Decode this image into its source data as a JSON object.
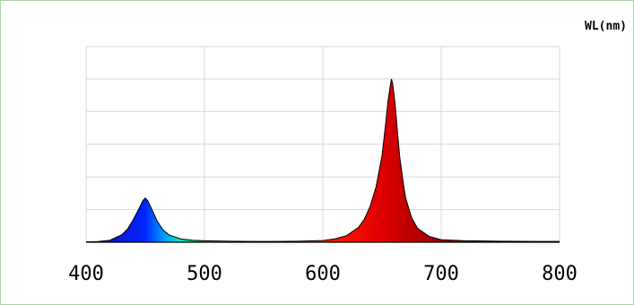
{
  "chart_data": {
    "type": "area",
    "xlabel": "WL(nm)",
    "ylabel": "",
    "xlim": [
      400,
      800
    ],
    "ylim": [
      0,
      100
    ],
    "xticks": [
      400,
      500,
      600,
      700,
      800
    ],
    "yticks": [
      0,
      20,
      40,
      60,
      80,
      100
    ],
    "grid": true,
    "fill": "visible-spectrum-gradient",
    "peaks": [
      {
        "wavelength": 450,
        "value": 27
      },
      {
        "wavelength": 658,
        "value": 100
      }
    ],
    "x": [
      400,
      410,
      420,
      430,
      435,
      440,
      445,
      448,
      450,
      452,
      455,
      460,
      465,
      470,
      480,
      490,
      500,
      520,
      540,
      560,
      580,
      600,
      610,
      620,
      630,
      635,
      640,
      645,
      650,
      653,
      655,
      657,
      658,
      659,
      661,
      663,
      665,
      668,
      670,
      675,
      680,
      690,
      700,
      720,
      750,
      780,
      800
    ],
    "y": [
      0.2,
      0.4,
      1.2,
      4.5,
      8,
      14,
      21,
      25.5,
      27,
      25.5,
      21,
      13,
      7.5,
      4.5,
      2,
      1.2,
      0.9,
      0.6,
      0.5,
      0.5,
      0.6,
      1,
      2,
      4,
      9,
      14,
      22,
      34,
      53,
      72,
      86,
      96,
      100,
      97,
      85,
      68,
      52,
      36,
      27,
      15,
      8.5,
      3.5,
      1.5,
      0.9,
      0.6,
      0.5,
      0.5
    ]
  }
}
